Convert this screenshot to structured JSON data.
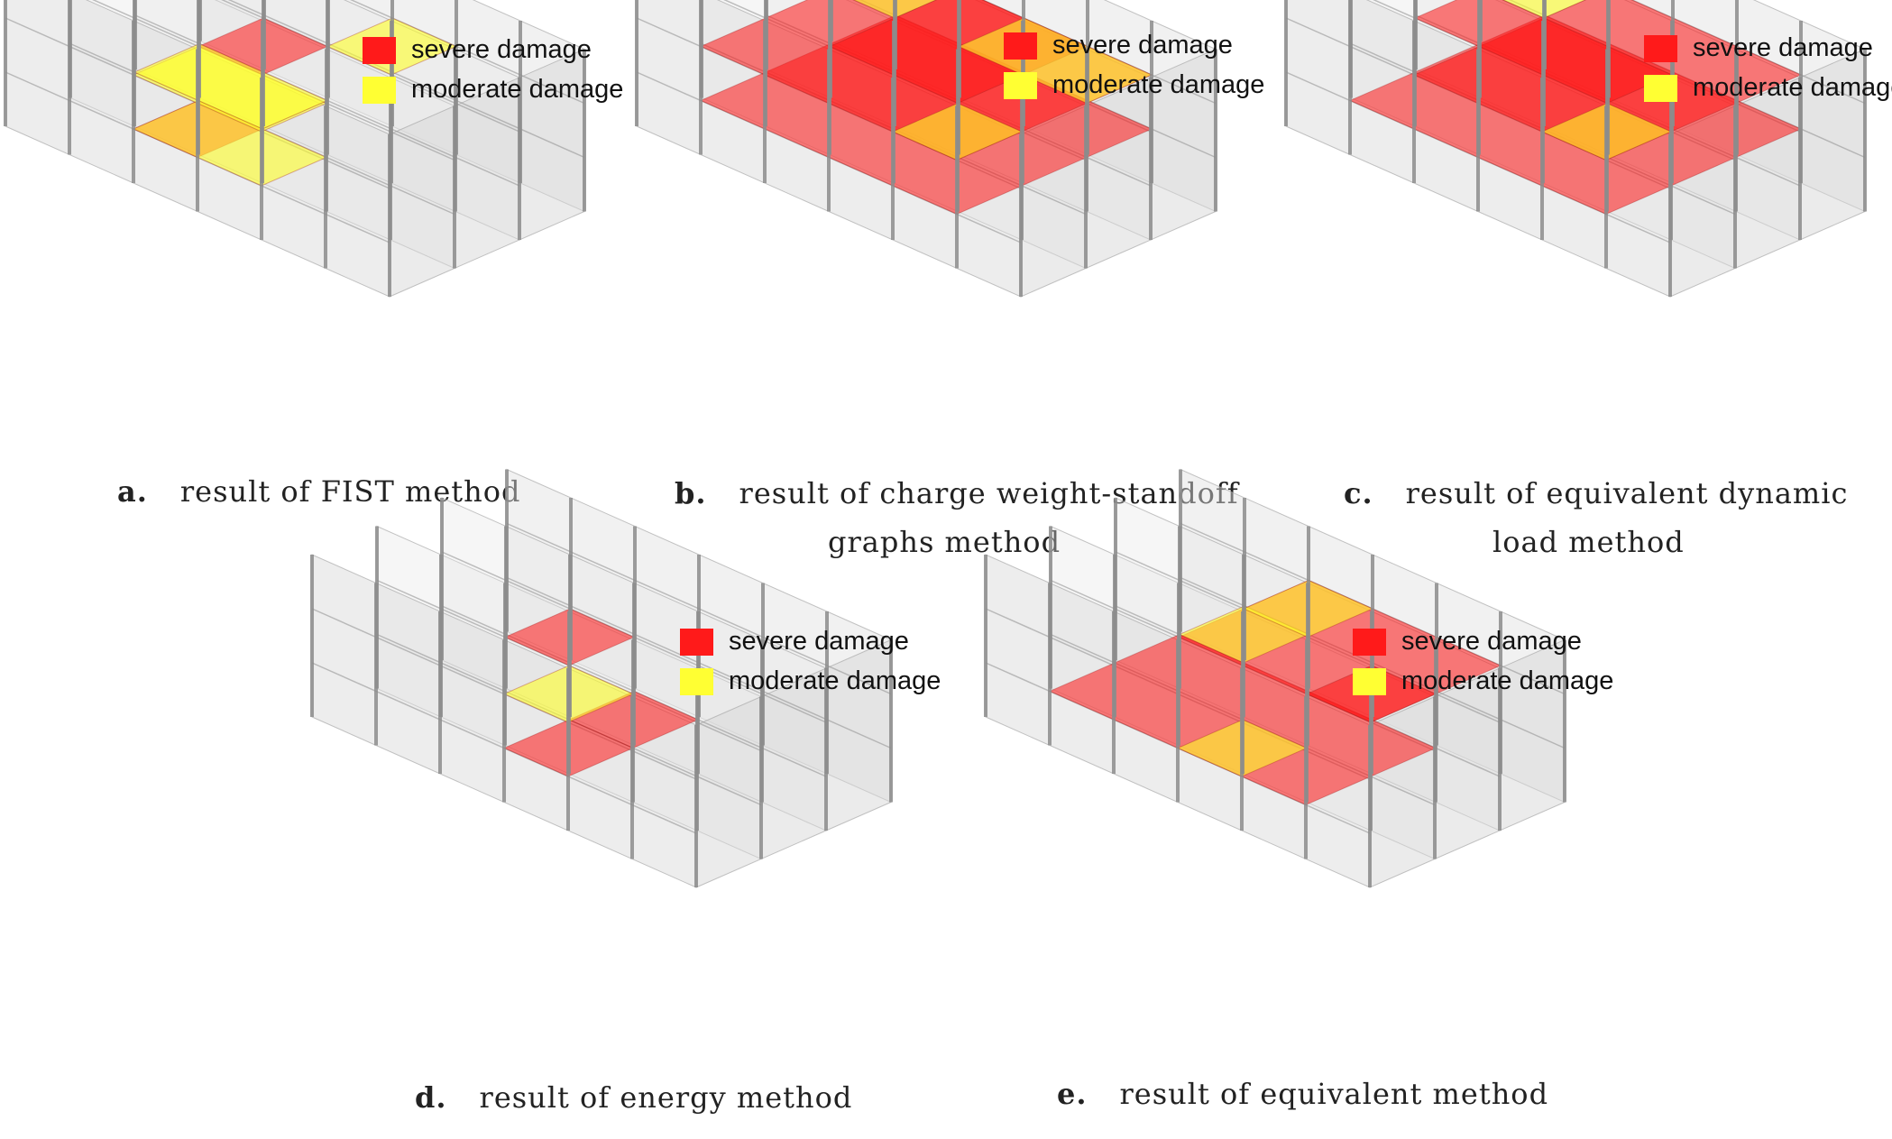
{
  "legend": {
    "severe_label": "severe damage",
    "moderate_label": "moderate damage",
    "severe_color": "#ff1a1a",
    "moderate_color": "#ffff33"
  },
  "panels": [
    {
      "id": "a",
      "letter": "a.",
      "caption_line1": "result of FIST method",
      "caption_line2": ""
    },
    {
      "id": "b",
      "letter": "b.",
      "caption_line1": "result of charge weight-standoff",
      "caption_line2": "graphs method"
    },
    {
      "id": "c",
      "letter": "c.",
      "caption_line1": "result of equivalent dynamic",
      "caption_line2": "load method"
    },
    {
      "id": "d",
      "letter": "d.",
      "caption_line1": "result of energy method",
      "caption_line2": ""
    },
    {
      "id": "e",
      "letter": "e.",
      "caption_line1": "result of equivalent method",
      "caption_line2": ""
    }
  ]
}
